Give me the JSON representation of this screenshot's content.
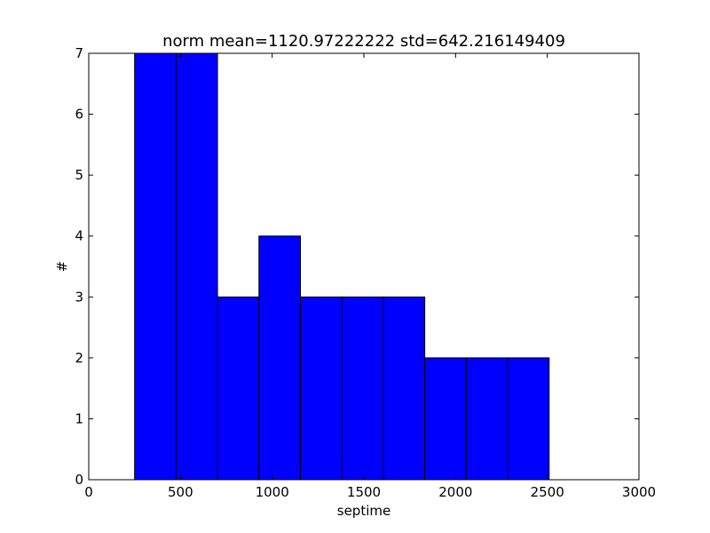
{
  "chart_data": {
    "type": "bar",
    "title": "norm  mean=1120.97222222  std=642.216149409",
    "xlabel": "septime",
    "ylabel": "#",
    "xlim": [
      0,
      3000
    ],
    "ylim": [
      0,
      7
    ],
    "x_ticks": [
      "0",
      "500",
      "1000",
      "1500",
      "2000",
      "2500",
      "3000"
    ],
    "y_ticks": [
      "0",
      "1",
      "2",
      "3",
      "4",
      "5",
      "6",
      "7"
    ],
    "bin_edges": [
      250,
      476,
      702,
      928,
      1154,
      1380,
      1606,
      1832,
      2058,
      2284,
      2510
    ],
    "values": [
      7,
      7,
      3,
      4,
      3,
      3,
      3,
      2,
      2,
      2
    ],
    "bar_color": "#0000ff",
    "edge_color": "#000000",
    "grid": false,
    "legend": "none"
  }
}
